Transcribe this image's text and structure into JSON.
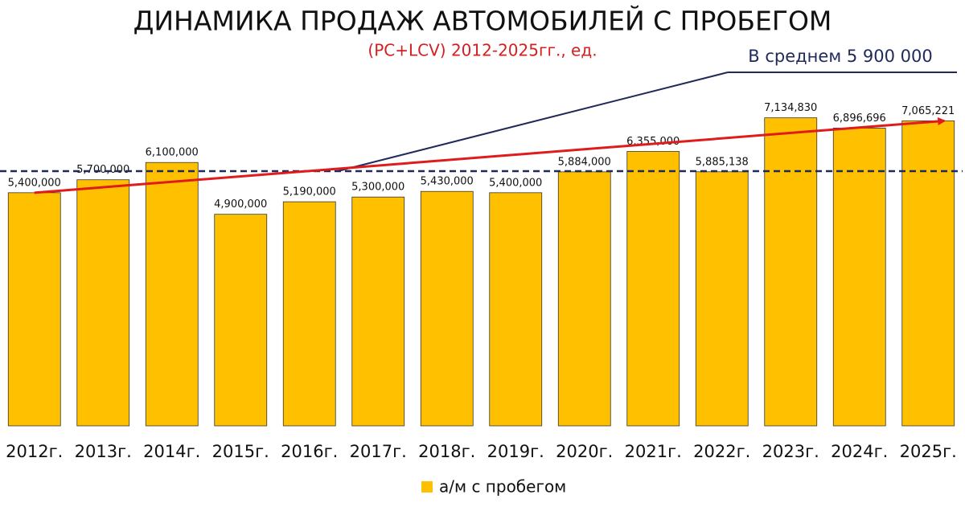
{
  "chart_data": {
    "type": "bar",
    "title": "ДИНАМИКА ПРОДАЖ АВТОМОБИЛЕЙ С ПРОБЕГОМ",
    "subtitle": "(PC+LCV) 2012-2025гг., ед.",
    "categories": [
      "2012г.",
      "2013г.",
      "2014г.",
      "2015г.",
      "2016г.",
      "2017г.",
      "2018г.",
      "2019г.",
      "2020г.",
      "2021г.",
      "2022г.",
      "2023г.",
      "2024г.",
      "2025г."
    ],
    "series": [
      {
        "name": "а/м с пробегом",
        "color": "#ffc000",
        "values": [
          5400000,
          5700000,
          6100000,
          4900000,
          5190000,
          5300000,
          5430000,
          5400000,
          5884000,
          6355000,
          5885138,
          7134830,
          6896696,
          7065221
        ],
        "value_labels": [
          "5,400,000",
          "5,700,000",
          "6,100,000",
          "4,900,000",
          "5,190,000",
          "5,300,000",
          "5,430,000",
          "5,400,000",
          "5,884,000",
          "6,355,000",
          "5,885,138",
          "7,134,830",
          "6,896,696",
          "7,065,221"
        ]
      }
    ],
    "average": {
      "value": 5900000,
      "label": "В среднем 5 900 000",
      "color": "#1f2a5a"
    },
    "trend_color": "#e01b1b",
    "ylim": [
      0,
      7500000
    ],
    "legend": "bottom"
  }
}
